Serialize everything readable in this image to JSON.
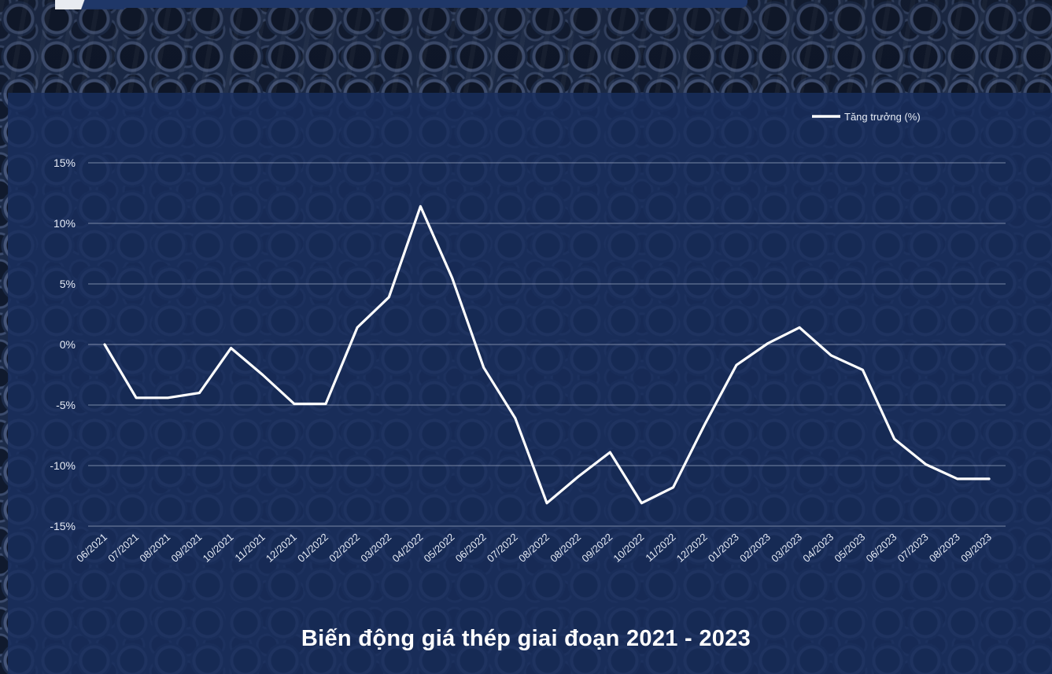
{
  "caption": "Biến động giá thép giai đoạn 2021 - 2023",
  "colors": {
    "line": "#ffffff",
    "panel": "#1c3163",
    "grid": "#c8d2e4"
  },
  "chart_data": {
    "type": "line",
    "title": "",
    "xlabel": "",
    "ylabel": "",
    "ylim": [
      -15,
      15
    ],
    "y_ticks": [
      "15%",
      "10%",
      "5%",
      "0%",
      "-5%",
      "-10%",
      "-15%"
    ],
    "y_tick_values": [
      15,
      10,
      5,
      0,
      -5,
      -10,
      -15
    ],
    "grid": "horizontal",
    "legend_position": "top-right",
    "categories": [
      "06/2021",
      "07/2021",
      "08/2021",
      "09/2021",
      "10/2021",
      "11/2021",
      "12/2021",
      "01/2022",
      "02/2022",
      "03/2022",
      "04/2022",
      "05/2022",
      "06/2022",
      "07/2022",
      "08/2022",
      "08/2022",
      "09/2022",
      "10/2022",
      "11/2022",
      "12/2022",
      "01/2023",
      "02/2023",
      "03/2023",
      "04/2023",
      "05/2023",
      "06/2023",
      "07/2023",
      "08/2023",
      "09/2023"
    ],
    "series": [
      {
        "name": "Tăng trưởng (%)",
        "values": [
          0,
          -4.4,
          -4.4,
          -4.0,
          -0.3,
          -2.5,
          -4.9,
          -4.9,
          1.4,
          3.9,
          11.4,
          5.5,
          -1.9,
          -6.1,
          -13.1,
          -10.9,
          -8.9,
          -13.1,
          -11.8,
          -6.6,
          -1.7,
          0.1,
          1.4,
          -0.9,
          -2.1,
          -7.8,
          -9.9,
          -11.1,
          -11.1
        ]
      }
    ]
  }
}
